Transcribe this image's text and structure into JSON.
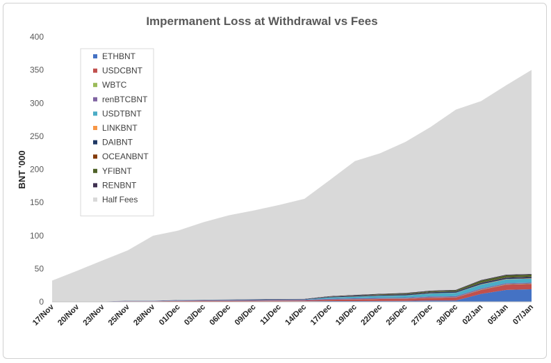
{
  "chart_data": {
    "type": "area",
    "stacked": true,
    "title": "Impermanent Loss at Withdrawal vs Fees",
    "ylabel": "BNT '000",
    "xlabel": "",
    "ylim": [
      0,
      400
    ],
    "yticks": [
      0,
      50,
      100,
      150,
      200,
      250,
      300,
      350,
      400
    ],
    "grid": false,
    "legend_position": "top-left",
    "categories": [
      "17/Nov",
      "20/Nov",
      "23/Nov",
      "25/Nov",
      "28/Nov",
      "01/Dec",
      "03/Dec",
      "06/Dec",
      "09/Dec",
      "11/Dec",
      "14/Dec",
      "17/Dec",
      "19/Dec",
      "22/Dec",
      "25/Dec",
      "27/Dec",
      "30/Dec",
      "02/Jan",
      "05/Jan",
      "07/Jan"
    ],
    "series": [
      {
        "name": "ETHBNT",
        "color": "#4472C4",
        "values": [
          0,
          0,
          0,
          0.3,
          0.3,
          0.5,
          0.5,
          0.5,
          0.6,
          0.6,
          0.7,
          1,
          1,
          1.2,
          1.3,
          2,
          2,
          12,
          18,
          19
        ]
      },
      {
        "name": "USDCBNT",
        "color": "#C0504D",
        "values": [
          0,
          0,
          0.3,
          0.5,
          0.5,
          0.7,
          1,
          1,
          1,
          1.2,
          1.3,
          2,
          2.5,
          3,
          3.2,
          4,
          4.5,
          6,
          8,
          8
        ]
      },
      {
        "name": "WBTC",
        "color": "#9BBB59",
        "values": [
          0,
          0,
          0,
          0,
          0,
          0,
          0,
          0,
          0,
          0,
          0,
          0.2,
          0.2,
          0.2,
          0.3,
          0.3,
          0.3,
          0.5,
          0.5,
          0.5
        ]
      },
      {
        "name": "renBTCBNT",
        "color": "#8064A2",
        "values": [
          0,
          0,
          0.2,
          0.5,
          0.5,
          0.8,
          0.8,
          1,
          1,
          1,
          1,
          1.3,
          1.5,
          1.5,
          1.5,
          1.7,
          1.7,
          1.5,
          1.5,
          1.5
        ]
      },
      {
        "name": "USDTBNT",
        "color": "#4BACC6",
        "values": [
          0,
          0,
          0,
          0.2,
          0.2,
          0.3,
          0.3,
          0.5,
          0.5,
          0.5,
          0.5,
          2,
          2.5,
          3,
          3.2,
          4.5,
          5,
          6,
          6,
          6
        ]
      },
      {
        "name": "LINKBNT",
        "color": "#F79646",
        "values": [
          0,
          0,
          0,
          0,
          0,
          0,
          0,
          0,
          0,
          0,
          0,
          0.2,
          0.2,
          0.2,
          0.3,
          0.3,
          0.3,
          0.5,
          0.5,
          0.5
        ]
      },
      {
        "name": "DAIBNT",
        "color": "#1F3864",
        "values": [
          0,
          0,
          0,
          0.2,
          0.2,
          0.3,
          0.3,
          0.3,
          0.5,
          0.5,
          0.5,
          1,
          1.2,
          1.3,
          1.5,
          1.7,
          1.7,
          2,
          2,
          2
        ]
      },
      {
        "name": "OCEANBNT",
        "color": "#843C0C",
        "values": [
          0,
          0,
          0,
          0,
          0,
          0,
          0,
          0,
          0,
          0,
          0,
          0.2,
          0.2,
          0.3,
          0.3,
          0.3,
          0.3,
          0.5,
          0.5,
          0.5
        ]
      },
      {
        "name": "YFIBNT",
        "color": "#4F6228",
        "values": [
          0,
          0,
          0,
          0,
          0,
          0,
          0,
          0,
          0,
          0,
          0,
          0.3,
          0.5,
          0.8,
          1,
          1.3,
          1.5,
          3,
          3,
          3
        ]
      },
      {
        "name": "RENBNT",
        "color": "#3F3151",
        "values": [
          0,
          0,
          0,
          0,
          0,
          0,
          0.3,
          0.3,
          0.4,
          0.4,
          0.5,
          0.5,
          0.7,
          0.7,
          0.8,
          0.8,
          0.9,
          1,
          1,
          1
        ]
      },
      {
        "name": "Half Fees",
        "color": "#D9D9D9",
        "values": [
          32,
          47,
          62,
          76,
          98,
          105,
          117,
          127,
          134,
          142,
          151,
          175,
          202,
          212,
          228,
          247,
          272,
          270,
          286,
          308
        ]
      }
    ]
  }
}
